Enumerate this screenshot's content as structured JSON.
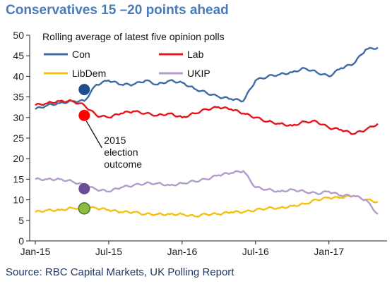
{
  "chart_data": {
    "type": "line",
    "title": "Conservatives 15 –20 points ahead",
    "subtitle": "Rolling average of latest five opinion polls",
    "source": "Source: RBC Capital Markets, UK Polling Report",
    "ylim": [
      0,
      50
    ],
    "yticks": [
      0,
      5,
      10,
      15,
      20,
      25,
      30,
      35,
      40,
      45,
      50
    ],
    "xticks": [
      "Jan-15",
      "Jul-15",
      "Jan-16",
      "Jul-16",
      "Jan-17"
    ],
    "xrange": [
      "2015-01",
      "2017-05"
    ],
    "grid": false,
    "legend": [
      "Con",
      "Lab",
      "LibDem",
      "UKIP"
    ],
    "series": [
      {
        "name": "Con",
        "color": "#3d6ba6",
        "x": [
          "2015-01",
          "2015-02",
          "2015-03",
          "2015-04",
          "2015-05",
          "2015-06",
          "2015-07",
          "2015-08",
          "2015-09",
          "2015-10",
          "2015-11",
          "2015-12",
          "2016-01",
          "2016-02",
          "2016-03",
          "2016-04",
          "2016-05",
          "2016-06",
          "2016-07",
          "2016-08",
          "2016-09",
          "2016-10",
          "2016-11",
          "2016-12",
          "2017-01",
          "2017-02",
          "2017-03",
          "2017-04",
          "2017-05"
        ],
        "values": [
          32,
          33,
          33.5,
          34,
          34,
          38,
          39,
          38,
          38,
          39,
          38,
          39,
          38.5,
          37,
          36,
          35,
          34.5,
          34,
          39,
          40,
          40.5,
          41,
          42,
          41,
          40,
          42,
          43,
          46.5,
          47
        ]
      },
      {
        "name": "Lab",
        "color": "#e8141c",
        "x": [
          "2015-01",
          "2015-02",
          "2015-03",
          "2015-04",
          "2015-05",
          "2015-06",
          "2015-07",
          "2015-08",
          "2015-09",
          "2015-10",
          "2015-11",
          "2015-12",
          "2016-01",
          "2016-02",
          "2016-03",
          "2016-04",
          "2016-05",
          "2016-06",
          "2016-07",
          "2016-08",
          "2016-09",
          "2016-10",
          "2016-11",
          "2016-12",
          "2017-01",
          "2017-02",
          "2017-03",
          "2017-04",
          "2017-05"
        ],
        "values": [
          33,
          33.5,
          34,
          34,
          33,
          30.5,
          30,
          31,
          31.5,
          31,
          30.5,
          31,
          30,
          31,
          32,
          32.5,
          32,
          31,
          30,
          29,
          28.5,
          28,
          29,
          29,
          27.5,
          27,
          26,
          27,
          28.5
        ]
      },
      {
        "name": "LibDem",
        "color": "#f5c013",
        "x": [
          "2015-01",
          "2015-02",
          "2015-03",
          "2015-04",
          "2015-05",
          "2015-06",
          "2015-07",
          "2015-08",
          "2015-09",
          "2015-10",
          "2015-11",
          "2015-12",
          "2016-01",
          "2016-02",
          "2016-03",
          "2016-04",
          "2016-05",
          "2016-06",
          "2016-07",
          "2016-08",
          "2016-09",
          "2016-10",
          "2016-11",
          "2016-12",
          "2017-01",
          "2017-02",
          "2017-03",
          "2017-04",
          "2017-05"
        ],
        "values": [
          7,
          7.5,
          7.5,
          8,
          8,
          8,
          7.5,
          7,
          7,
          6.5,
          6.5,
          6.5,
          6.5,
          6,
          6.5,
          6.5,
          7,
          7,
          7.5,
          8,
          8,
          8.5,
          9,
          10,
          10.5,
          10.5,
          11,
          10,
          9.5
        ]
      },
      {
        "name": "UKIP",
        "color": "#b29ccc",
        "x": [
          "2015-01",
          "2015-02",
          "2015-03",
          "2015-04",
          "2015-05",
          "2015-06",
          "2015-07",
          "2015-08",
          "2015-09",
          "2015-10",
          "2015-11",
          "2015-12",
          "2016-01",
          "2016-02",
          "2016-03",
          "2016-04",
          "2016-05",
          "2016-06",
          "2016-07",
          "2016-08",
          "2016-09",
          "2016-10",
          "2016-11",
          "2016-12",
          "2017-01",
          "2017-02",
          "2017-03",
          "2017-04",
          "2017-05"
        ],
        "values": [
          15,
          15,
          15,
          14.5,
          13.5,
          12.5,
          12,
          13,
          13.5,
          14,
          14,
          13.5,
          14,
          14.5,
          15,
          16,
          16.5,
          17,
          13,
          12.5,
          12,
          12.5,
          12,
          11.5,
          12,
          11,
          11,
          10,
          6.5
        ]
      }
    ],
    "markers": [
      {
        "series": "Con",
        "x": "2015-05",
        "value": 36.8,
        "color": "#1f4e8c"
      },
      {
        "series": "Lab",
        "x": "2015-05",
        "value": 30.5,
        "color": "#ff0000"
      },
      {
        "series": "UKIP",
        "x": "2015-05",
        "value": 12.7,
        "color": "#6a4c93"
      },
      {
        "series": "LibDem",
        "x": "2015-05",
        "value": 7.9,
        "color": "#8dbb3f"
      }
    ],
    "annotation": {
      "lines": [
        "2015",
        "election",
        "outcome"
      ],
      "x": "2015-05",
      "value": 30.5
    }
  }
}
